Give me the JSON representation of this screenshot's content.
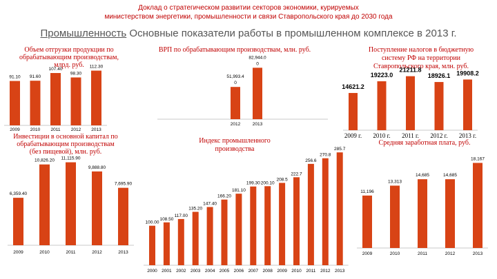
{
  "header": {
    "line1": "Доклад о стратегическом развитии секторов экономики, курируемых",
    "line2": "министерством энергетики, промышленности и связи Ставропольского края до 2030 года"
  },
  "slide": {
    "title_underlined": "Промышленность",
    "title_rest": " Основные показатели работы в промышленном комплексе в 2013 г."
  },
  "colors": {
    "bar": "#d84315",
    "title": "#c00000"
  },
  "chart_data": [
    {
      "id": "shipments",
      "type": "bar",
      "title_lines": [
        "Объем отгрузки продукции по",
        "обрабатывающим производствам,",
        "млрд. руб."
      ],
      "categories": [
        "2009",
        "2010",
        "2011",
        "2012",
        "2013"
      ],
      "values": [
        91.1,
        91.6,
        107.4,
        98.3,
        112.3
      ],
      "labels": [
        "91.10",
        "91.60",
        "107.40",
        "98.30",
        "112.30"
      ],
      "ylim": [
        0,
        130
      ]
    },
    {
      "id": "grp",
      "type": "bar",
      "title_lines": [
        "ВРП по обрабатывающим производствам, млн. руб."
      ],
      "categories": [
        "2012",
        "2013"
      ],
      "values": [
        51993.4,
        82944.0
      ],
      "labels": [
        "51,993.40",
        "82,944.00"
      ],
      "ylim": [
        0,
        90000
      ]
    },
    {
      "id": "taxes",
      "type": "bar",
      "title_lines": [
        "Поступление налогов в бюджетную",
        "систему РФ на территории",
        "Ставропольского края, млн. руб."
      ],
      "categories": [
        "2009 г.",
        "2010 г.",
        "2011 г.",
        "2012 г.",
        "2013 г."
      ],
      "values": [
        14621.2,
        19223.0,
        21211.8,
        18926.1,
        19908.2
      ],
      "labels": [
        "14621.2",
        "19223.0",
        "21211.8",
        "18926.1",
        "19908.2"
      ],
      "ylim": [
        0,
        23000
      ]
    },
    {
      "id": "investments",
      "type": "bar",
      "title_lines": [
        "Инвестиции в основной капитал по",
        "обрабатывающим производствам",
        "(без пищевой), млн. руб."
      ],
      "categories": [
        "2009",
        "2010",
        "2011",
        "2012",
        "2013"
      ],
      "values": [
        6359.4,
        10826.2,
        11115.9,
        9888.8,
        7695.9
      ],
      "labels": [
        "6,359.40",
        "10,826.20",
        "11,115.90",
        "9,888.80",
        "7,695.90"
      ],
      "ylim": [
        0,
        12000
      ]
    },
    {
      "id": "index",
      "type": "bar",
      "title_lines": [
        "Индекс промышленного",
        "производства"
      ],
      "categories": [
        "2000",
        "2001",
        "2002",
        "2003",
        "2004",
        "2005",
        "2006",
        "2007",
        "2008",
        "2009",
        "2010",
        "2011",
        "2012",
        "2013"
      ],
      "values": [
        100.0,
        108.5,
        117.0,
        135.2,
        147.4,
        166.2,
        181.1,
        199.3,
        200.1,
        208.5,
        222.7,
        256.6,
        270.8,
        285.7
      ],
      "labels": [
        "100.00",
        "108.50",
        "117.00",
        "135.20",
        "147.40",
        "166.20",
        "181.10",
        "199.30",
        "200.10",
        "208.5",
        "222.7",
        "256.6",
        "270.8",
        "285.7"
      ],
      "ylim": [
        0,
        300
      ]
    },
    {
      "id": "salary",
      "type": "bar",
      "title_lines": [
        "Средняя заработная плата, руб."
      ],
      "categories": [
        "2009",
        "2010",
        "2011",
        "2012",
        "2013"
      ],
      "values": [
        11196,
        13313,
        14685,
        14685,
        18167
      ],
      "labels": [
        "11,196",
        "13,313",
        "14,685",
        "14,685",
        "18,167"
      ],
      "ylim": [
        0,
        20000
      ]
    }
  ]
}
